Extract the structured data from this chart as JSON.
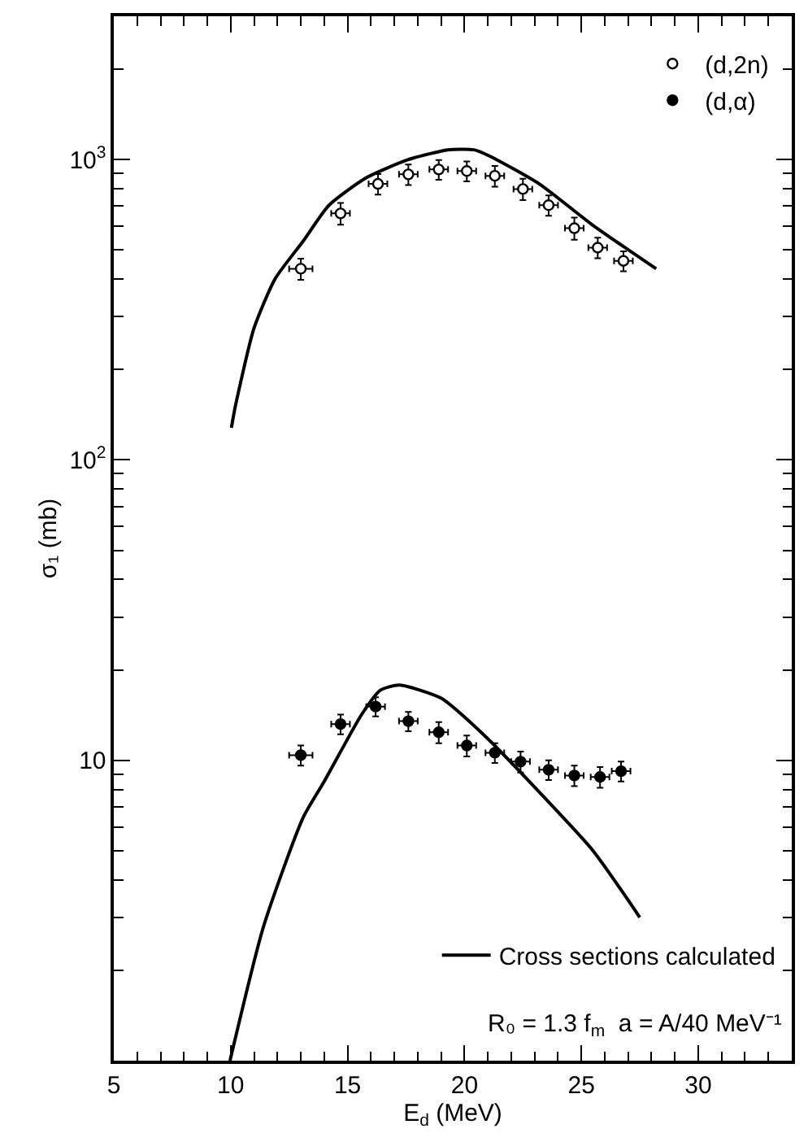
{
  "chart_data": {
    "type": "scatter",
    "xlabel": "E$_{d}$ (MeV)",
    "ylabel": "σ₁ (mb)",
    "log": "y",
    "legend": "top right",
    "xlim": [
      5,
      34
    ],
    "ylim": [
      1,
      3000
    ],
    "xticks": [
      5,
      10,
      15,
      20,
      25,
      30,
      {
        "value": 6,
        "label": null
      },
      {
        "value": 7,
        "label": null
      },
      {
        "value": 8,
        "label": null
      },
      {
        "value": 9,
        "label": null
      },
      {
        "value": 11,
        "label": null
      },
      {
        "value": 12,
        "label": null
      },
      {
        "value": 13,
        "label": null
      },
      {
        "value": 14,
        "label": null
      },
      {
        "value": 16,
        "label": null
      },
      {
        "value": 17,
        "label": null
      },
      {
        "value": 18,
        "label": null
      },
      {
        "value": 19,
        "label": null
      },
      {
        "value": 21,
        "label": null
      },
      {
        "value": 22,
        "label": null
      },
      {
        "value": 23,
        "label": null
      },
      {
        "value": 24,
        "label": null
      },
      {
        "value": 26,
        "label": null
      },
      {
        "value": 27,
        "label": null
      },
      {
        "value": 28,
        "label": null
      },
      {
        "value": 29,
        "label": null
      },
      {
        "value": 31,
        "label": null
      },
      {
        "value": 32,
        "label": null
      },
      {
        "value": 33,
        "label": null
      }
    ],
    "yticks": [
      10,
      {
        "value": 100,
        "label": "10$^{2}$"
      },
      {
        "value": 1000,
        "label": "10$^{3}$"
      },
      {
        "value": 2,
        "label": null
      },
      {
        "value": 3,
        "label": null
      },
      {
        "value": 4,
        "label": null
      },
      {
        "value": 5,
        "label": null
      },
      {
        "value": 6,
        "label": null
      },
      {
        "value": 7,
        "label": null
      },
      {
        "value": 8,
        "label": null
      },
      {
        "value": 9,
        "label": null
      },
      {
        "value": 20,
        "label": null
      },
      {
        "value": 30,
        "label": null
      },
      {
        "value": 40,
        "label": null
      },
      {
        "value": 50,
        "label": null
      },
      {
        "value": 60,
        "label": null
      },
      {
        "value": 70,
        "label": null
      },
      {
        "value": 80,
        "label": null
      },
      {
        "value": 90,
        "label": null
      },
      {
        "value": 200,
        "label": null
      },
      {
        "value": 300,
        "label": null
      },
      {
        "value": 400,
        "label": null
      },
      {
        "value": 500,
        "label": null
      },
      {
        "value": 600,
        "label": null
      },
      {
        "value": 700,
        "label": null
      },
      {
        "value": 800,
        "label": null
      },
      {
        "value": 900,
        "label": null
      },
      {
        "value": 2000,
        "label": null
      }
    ],
    "annotations": [
      "R₀ = 1.3 f$_{m}$  a = A/40 MeV⁻¹"
    ],
    "series": [
      {
        "name": "(d,2n)",
        "type": "scatter",
        "marker": "circle",
        "color": "#ffffff",
        "x": [
          13.0,
          14.7,
          16.3,
          17.6,
          18.9,
          20.1,
          21.3,
          22.5,
          23.6,
          24.7,
          25.7,
          26.8
        ],
        "values": [
          433,
          662,
          830,
          893,
          927,
          916,
          883,
          798,
          705,
          591,
          509,
          460
        ],
        "errors": [
          35,
          55,
          65,
          70,
          70,
          70,
          70,
          65,
          55,
          50,
          40,
          35
        ],
        "xerrors": [
          0.5,
          0.4,
          0.4,
          0.4,
          0.4,
          0.4,
          0.4,
          0.4,
          0.4,
          0.4,
          0.4,
          0.4
        ]
      },
      {
        "name": "(d,α)",
        "type": "scatter",
        "marker": "circle",
        "color": "#000000",
        "x": [
          13.0,
          14.7,
          16.2,
          17.6,
          18.9,
          20.1,
          21.3,
          22.4,
          23.6,
          24.7,
          25.8,
          26.7
        ],
        "values": [
          10.4,
          13.2,
          15.1,
          13.5,
          12.4,
          11.2,
          10.6,
          9.9,
          9.3,
          8.9,
          8.8,
          9.2
        ],
        "errors": [
          0.8,
          1.0,
          1.1,
          1.0,
          1.0,
          0.9,
          0.8,
          0.8,
          0.7,
          0.7,
          0.7,
          0.7
        ],
        "xerrors": [
          0.5,
          0.4,
          0.4,
          0.4,
          0.4,
          0.4,
          0.4,
          0.4,
          0.4,
          0.4,
          0.4,
          0.4
        ]
      },
      {
        "name": "Cross sections calculated",
        "type": "line",
        "line_style": "solid",
        "marker": "none",
        "color": "#000000",
        "x": [
          10.03,
          10.2,
          11.0,
          11.9,
          13.1,
          14.2,
          15.8,
          17.6,
          19.3,
          20.4,
          21.1,
          23.2,
          25.5,
          28.2,
          null,
          9.97,
          11.4,
          13.1,
          14.0,
          15.6,
          16.4,
          17.2,
          19.0,
          20.9,
          22.9,
          25.5,
          27.5
        ],
        "values": [
          128,
          151,
          275,
          401,
          535,
          704,
          870,
          1000,
          1078,
          1078,
          1025,
          830,
          604,
          433,
          null,
          1.0,
          2.79,
          6.45,
          8.5,
          14.2,
          17.1,
          17.8,
          16.1,
          12.0,
          8.3,
          5.0,
          3.0
        ]
      }
    ]
  }
}
